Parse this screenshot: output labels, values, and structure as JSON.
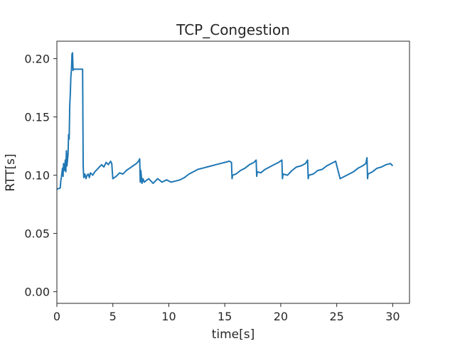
{
  "chart_data": {
    "type": "line",
    "title": "TCP_Congestion",
    "xlabel": "time[s]",
    "ylabel": "RTT[s]",
    "xlim": [
      0,
      31.5
    ],
    "ylim": [
      -0.01,
      0.215
    ],
    "xticks": [
      0,
      5,
      10,
      15,
      20,
      25,
      30
    ],
    "xtick_labels": [
      "0",
      "5",
      "10",
      "15",
      "20",
      "25",
      "30"
    ],
    "yticks": [
      0.0,
      0.05,
      0.1,
      0.15,
      0.2
    ],
    "ytick_labels": [
      "0.00",
      "0.05",
      "0.10",
      "0.15",
      "0.20"
    ],
    "grid": false,
    "legend": "none",
    "line_color": "#1f77b4",
    "series": [
      {
        "x": [
          0.0,
          0.3,
          0.35,
          0.4,
          0.5,
          0.55,
          0.6,
          0.7,
          0.75,
          0.8,
          0.85,
          0.9,
          1.0,
          1.05,
          1.1,
          1.15,
          1.2,
          1.25,
          1.3,
          1.35,
          1.4,
          1.45,
          1.5,
          1.55,
          1.6,
          1.65,
          2.3,
          2.35,
          2.4,
          2.5,
          2.6,
          2.7,
          2.8,
          2.9,
          3.0,
          3.2,
          3.4,
          3.6,
          3.8,
          4.0,
          4.2,
          4.4,
          4.6,
          4.8,
          4.9,
          5.0,
          5.3,
          5.6,
          5.9,
          6.2,
          6.5,
          6.8,
          7.1,
          7.3,
          7.4,
          7.45,
          7.5,
          7.6,
          7.7,
          7.8,
          8.2,
          8.6,
          9.0,
          9.4,
          9.8,
          10.2,
          10.6,
          11.0,
          11.4,
          11.8,
          12.2,
          12.6,
          13.0,
          13.4,
          13.8,
          14.2,
          14.6,
          15.0,
          15.4,
          15.6,
          15.65,
          15.7,
          16.0,
          16.4,
          16.8,
          17.2,
          17.6,
          17.8,
          17.85,
          17.9,
          18.2,
          18.6,
          19.0,
          19.4,
          19.8,
          20.1,
          20.15,
          20.2,
          20.6,
          21.0,
          21.4,
          21.8,
          22.2,
          22.4,
          22.45,
          22.5,
          22.9,
          23.3,
          23.7,
          24.1,
          24.5,
          24.9,
          25.3,
          25.7,
          26.1,
          26.5,
          26.9,
          27.3,
          27.6,
          27.7,
          27.75,
          27.8,
          28.2,
          28.6,
          29.0,
          29.4,
          29.8,
          30.0
        ],
        "y": [
          0.088,
          0.089,
          0.095,
          0.098,
          0.106,
          0.099,
          0.11,
          0.104,
          0.113,
          0.103,
          0.121,
          0.108,
          0.118,
          0.135,
          0.131,
          0.16,
          0.17,
          0.185,
          0.19,
          0.204,
          0.205,
          0.19,
          0.191,
          0.191,
          0.191,
          0.191,
          0.191,
          0.108,
          0.098,
          0.101,
          0.097,
          0.1,
          0.101,
          0.098,
          0.102,
          0.1,
          0.103,
          0.105,
          0.107,
          0.109,
          0.107,
          0.111,
          0.109,
          0.112,
          0.11,
          0.097,
          0.099,
          0.102,
          0.101,
          0.104,
          0.106,
          0.108,
          0.11,
          0.112,
          0.114,
          0.094,
          0.104,
          0.093,
          0.097,
          0.094,
          0.097,
          0.093,
          0.097,
          0.094,
          0.096,
          0.094,
          0.095,
          0.096,
          0.098,
          0.101,
          0.103,
          0.105,
          0.106,
          0.107,
          0.108,
          0.109,
          0.11,
          0.111,
          0.112,
          0.111,
          0.097,
          0.1,
          0.101,
          0.104,
          0.106,
          0.109,
          0.111,
          0.113,
          0.099,
          0.103,
          0.102,
          0.105,
          0.107,
          0.109,
          0.111,
          0.113,
          0.097,
          0.101,
          0.1,
          0.104,
          0.107,
          0.108,
          0.11,
          0.113,
          0.097,
          0.1,
          0.101,
          0.104,
          0.105,
          0.108,
          0.11,
          0.112,
          0.097,
          0.099,
          0.101,
          0.103,
          0.106,
          0.108,
          0.11,
          0.115,
          0.097,
          0.101,
          0.103,
          0.106,
          0.107,
          0.109,
          0.11,
          0.108
        ]
      }
    ]
  }
}
